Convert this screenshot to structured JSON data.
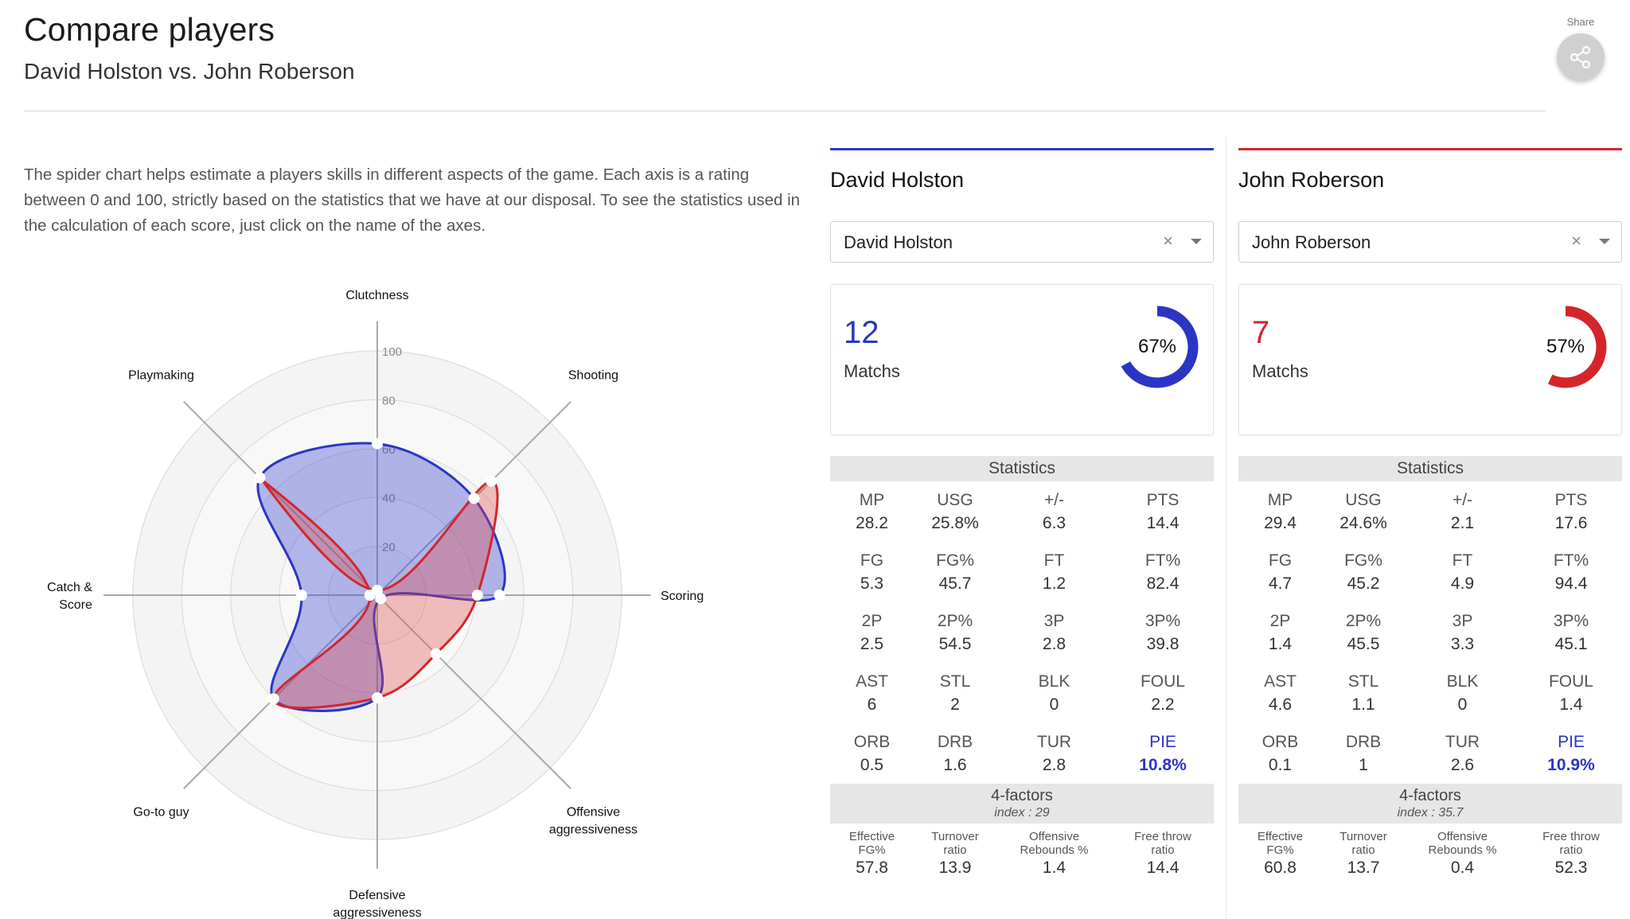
{
  "header": {
    "title": "Compare players",
    "subtitle": "David Holston vs. John Roberson",
    "share_label": "Share"
  },
  "description": "The spider chart helps estimate a players skills in different aspects of the game. Each axis is a rating between 0 and 100, strictly based on the statistics that we have at our disposal. To see the statistics used in the calculation of each score, just click on the name of the axes.",
  "colors": {
    "player1": "#2b35c4",
    "player2": "#d3262b"
  },
  "chart_data": {
    "type": "radar",
    "axes": [
      "Clutchness",
      "Shooting",
      "Scoring",
      "Offensive aggressiveness",
      "Defensive aggressiveness",
      "Go-to guy",
      "Catch & Score",
      "Playmaking"
    ],
    "axis_labels": [
      [
        "Clutchness"
      ],
      [
        "Shooting"
      ],
      [
        "Scoring"
      ],
      [
        "Offensive",
        "aggressiveness"
      ],
      [
        "Defensive",
        "aggressiveness"
      ],
      [
        "Go-to guy"
      ],
      [
        "Catch &",
        "Score"
      ],
      [
        "Playmaking"
      ]
    ],
    "rlim": [
      0,
      100
    ],
    "ticks": [
      "20",
      "40",
      "60",
      "80",
      "100"
    ],
    "series": [
      {
        "name": "David Holston",
        "color": "#2b35c4",
        "values": [
          62,
          56,
          50,
          0,
          42,
          60,
          31,
          68
        ]
      },
      {
        "name": "John Roberson",
        "color": "#d3262b",
        "values": [
          0,
          66,
          41,
          34,
          42,
          60,
          3,
          68
        ]
      }
    ]
  },
  "players": [
    {
      "name": "David Holston",
      "select_value": "David Holston",
      "clear_symbol": "×",
      "matches": "12",
      "matches_label": "Matchs",
      "win_pct": 67,
      "win_pct_label": "67%",
      "stats_title": "Statistics",
      "stats": [
        {
          "label": "MP",
          "value": "28.2"
        },
        {
          "label": "USG",
          "value": "25.8%"
        },
        {
          "label": "+/-",
          "value": "6.3"
        },
        {
          "label": "PTS",
          "value": "14.4"
        },
        {
          "label": "FG",
          "value": "5.3"
        },
        {
          "label": "FG%",
          "value": "45.7"
        },
        {
          "label": "FT",
          "value": "1.2"
        },
        {
          "label": "FT%",
          "value": "82.4"
        },
        {
          "label": "2P",
          "value": "2.5"
        },
        {
          "label": "2P%",
          "value": "54.5"
        },
        {
          "label": "3P",
          "value": "2.8"
        },
        {
          "label": "3P%",
          "value": "39.8"
        },
        {
          "label": "AST",
          "value": "6"
        },
        {
          "label": "STL",
          "value": "2"
        },
        {
          "label": "BLK",
          "value": "0"
        },
        {
          "label": "FOUL",
          "value": "2.2"
        },
        {
          "label": "ORB",
          "value": "0.5"
        },
        {
          "label": "DRB",
          "value": "1.6"
        },
        {
          "label": "TUR",
          "value": "2.8"
        },
        {
          "label": "PIE",
          "value": "10.8%"
        }
      ],
      "factors_title": "4-factors",
      "factors_index": "index : 29",
      "factors": [
        {
          "label1": "Effective",
          "label2": "FG%",
          "value": "57.8"
        },
        {
          "label1": "Turnover",
          "label2": "ratio",
          "value": "13.9"
        },
        {
          "label1": "Offensive",
          "label2": "Rebounds %",
          "value": "1.4"
        },
        {
          "label1": "Free throw",
          "label2": "ratio",
          "value": "14.4"
        }
      ]
    },
    {
      "name": "John Roberson",
      "select_value": "John Roberson",
      "clear_symbol": "×",
      "matches": "7",
      "matches_label": "Matchs",
      "win_pct": 57,
      "win_pct_label": "57%",
      "stats_title": "Statistics",
      "stats": [
        {
          "label": "MP",
          "value": "29.4"
        },
        {
          "label": "USG",
          "value": "24.6%"
        },
        {
          "label": "+/-",
          "value": "2.1"
        },
        {
          "label": "PTS",
          "value": "17.6"
        },
        {
          "label": "FG",
          "value": "4.7"
        },
        {
          "label": "FG%",
          "value": "45.2"
        },
        {
          "label": "FT",
          "value": "4.9"
        },
        {
          "label": "FT%",
          "value": "94.4"
        },
        {
          "label": "2P",
          "value": "1.4"
        },
        {
          "label": "2P%",
          "value": "45.5"
        },
        {
          "label": "3P",
          "value": "3.3"
        },
        {
          "label": "3P%",
          "value": "45.1"
        },
        {
          "label": "AST",
          "value": "4.6"
        },
        {
          "label": "STL",
          "value": "1.1"
        },
        {
          "label": "BLK",
          "value": "0"
        },
        {
          "label": "FOUL",
          "value": "1.4"
        },
        {
          "label": "ORB",
          "value": "0.1"
        },
        {
          "label": "DRB",
          "value": "1"
        },
        {
          "label": "TUR",
          "value": "2.6"
        },
        {
          "label": "PIE",
          "value": "10.9%"
        }
      ],
      "factors_title": "4-factors",
      "factors_index": "index : 35.7",
      "factors": [
        {
          "label1": "Effective",
          "label2": "FG%",
          "value": "60.8"
        },
        {
          "label1": "Turnover",
          "label2": "ratio",
          "value": "13.7"
        },
        {
          "label1": "Offensive",
          "label2": "Rebounds %",
          "value": "0.4"
        },
        {
          "label1": "Free throw",
          "label2": "ratio",
          "value": "52.3"
        }
      ]
    }
  ]
}
